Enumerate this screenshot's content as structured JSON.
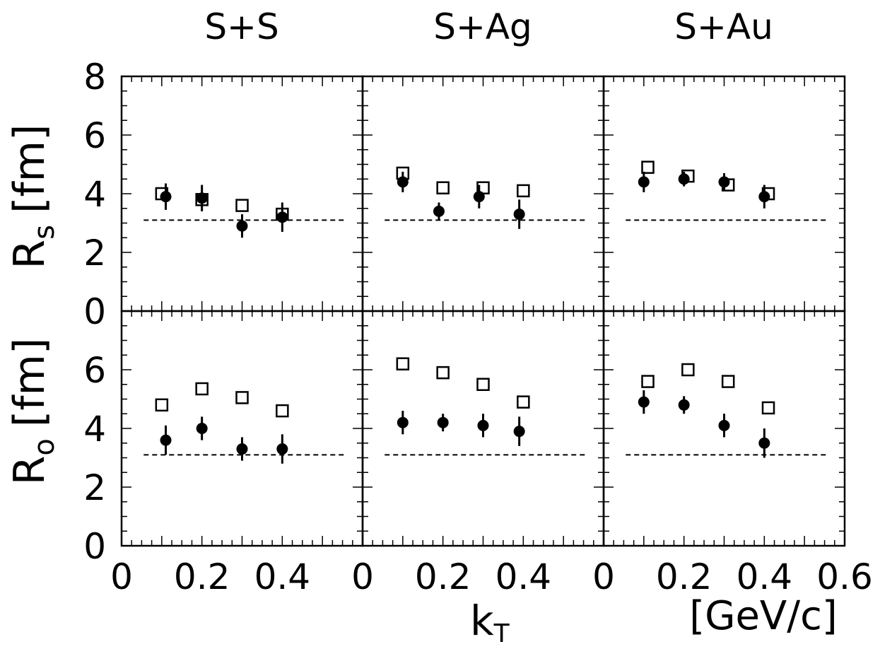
{
  "chart_data": {
    "type": "scatter",
    "panel_titles": [
      "S+S",
      "S+Ag",
      "S+Au"
    ],
    "ylabels": [
      {
        "main": "R",
        "sub": "s",
        "unit": "[fm]"
      },
      {
        "main": "R",
        "sub": "o",
        "unit": "[fm]"
      }
    ],
    "xlabel": {
      "main": "k",
      "sub": "T"
    },
    "xunit": "[GeV/c]",
    "xlim": [
      0,
      0.6
    ],
    "ylim": [
      0,
      8
    ],
    "x_ticks": {
      "S+S": [
        "0",
        "0.2",
        "0.4"
      ],
      "S+Ag": [
        "0",
        "0.2",
        "0.4"
      ],
      "S+Au": [
        "0",
        "0.2",
        "0.4",
        "0.6"
      ]
    },
    "y_ticks_top": [
      "0",
      "2",
      "4",
      "6",
      "8"
    ],
    "y_ticks_bottom": [
      "0",
      "2",
      "4",
      "6"
    ],
    "reference_line_y": 3.1,
    "reference_line_x_range": [
      0.055,
      0.56
    ],
    "panels": [
      {
        "row": "Rs",
        "col": "S+S",
        "filled": [
          {
            "x": 0.11,
            "y": 3.9,
            "err": 0.45
          },
          {
            "x": 0.2,
            "y": 3.85,
            "err": 0.45
          },
          {
            "x": 0.3,
            "y": 2.9,
            "err": 0.4
          },
          {
            "x": 0.4,
            "y": 3.2,
            "err": 0.5
          }
        ],
        "open": [
          {
            "x": 0.1,
            "y": 4.0
          },
          {
            "x": 0.2,
            "y": 3.8
          },
          {
            "x": 0.3,
            "y": 3.6
          },
          {
            "x": 0.4,
            "y": 3.3
          }
        ]
      },
      {
        "row": "Rs",
        "col": "S+Ag",
        "filled": [
          {
            "x": 0.1,
            "y": 4.4,
            "err": 0.35
          },
          {
            "x": 0.19,
            "y": 3.4,
            "err": 0.3
          },
          {
            "x": 0.29,
            "y": 3.9,
            "err": 0.4
          },
          {
            "x": 0.39,
            "y": 3.3,
            "err": 0.5
          }
        ],
        "open": [
          {
            "x": 0.1,
            "y": 4.7
          },
          {
            "x": 0.2,
            "y": 4.2
          },
          {
            "x": 0.3,
            "y": 4.2
          },
          {
            "x": 0.4,
            "y": 4.1
          }
        ]
      },
      {
        "row": "Rs",
        "col": "S+Au",
        "filled": [
          {
            "x": 0.1,
            "y": 4.4,
            "err": 0.35
          },
          {
            "x": 0.2,
            "y": 4.5,
            "err": 0.25
          },
          {
            "x": 0.3,
            "y": 4.4,
            "err": 0.3
          },
          {
            "x": 0.4,
            "y": 3.9,
            "err": 0.4
          }
        ],
        "open": [
          {
            "x": 0.11,
            "y": 4.9
          },
          {
            "x": 0.21,
            "y": 4.6
          },
          {
            "x": 0.31,
            "y": 4.3
          },
          {
            "x": 0.41,
            "y": 4.0
          }
        ]
      },
      {
        "row": "Ro",
        "col": "S+S",
        "filled": [
          {
            "x": 0.11,
            "y": 3.6,
            "err": 0.5
          },
          {
            "x": 0.2,
            "y": 4.0,
            "err": 0.4
          },
          {
            "x": 0.3,
            "y": 3.3,
            "err": 0.4
          },
          {
            "x": 0.4,
            "y": 3.3,
            "err": 0.5
          }
        ],
        "open": [
          {
            "x": 0.1,
            "y": 4.8
          },
          {
            "x": 0.2,
            "y": 5.35
          },
          {
            "x": 0.3,
            "y": 5.05
          },
          {
            "x": 0.4,
            "y": 4.6
          }
        ]
      },
      {
        "row": "Ro",
        "col": "S+Ag",
        "filled": [
          {
            "x": 0.1,
            "y": 4.2,
            "err": 0.4
          },
          {
            "x": 0.2,
            "y": 4.2,
            "err": 0.3
          },
          {
            "x": 0.3,
            "y": 4.1,
            "err": 0.4
          },
          {
            "x": 0.39,
            "y": 3.9,
            "err": 0.5
          }
        ],
        "open": [
          {
            "x": 0.1,
            "y": 6.2
          },
          {
            "x": 0.2,
            "y": 5.9
          },
          {
            "x": 0.3,
            "y": 5.5
          },
          {
            "x": 0.4,
            "y": 4.9
          }
        ]
      },
      {
        "row": "Ro",
        "col": "S+Au",
        "filled": [
          {
            "x": 0.1,
            "y": 4.9,
            "err": 0.4
          },
          {
            "x": 0.2,
            "y": 4.8,
            "err": 0.3
          },
          {
            "x": 0.3,
            "y": 4.1,
            "err": 0.4
          },
          {
            "x": 0.4,
            "y": 3.5,
            "err": 0.5
          }
        ],
        "open": [
          {
            "x": 0.11,
            "y": 5.6
          },
          {
            "x": 0.21,
            "y": 6.0
          },
          {
            "x": 0.31,
            "y": 5.6
          },
          {
            "x": 0.41,
            "y": 4.7
          }
        ]
      }
    ],
    "colors": {
      "ink": "#000000",
      "background": "#ffffff"
    }
  }
}
